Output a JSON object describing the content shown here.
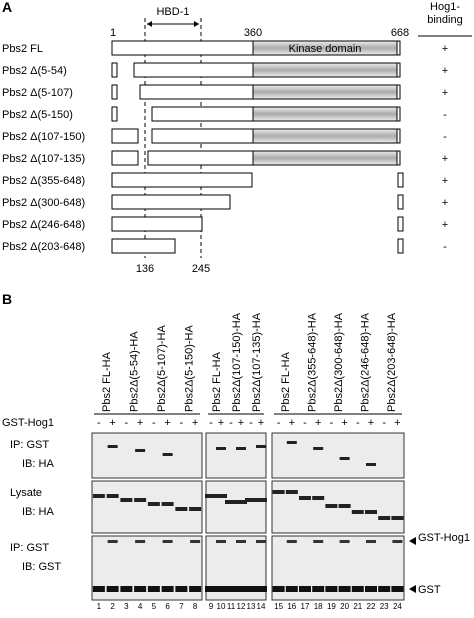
{
  "panel_a": {
    "letter": "A",
    "hbd_label": "HBD-1",
    "scale": {
      "start": "1",
      "kinase_start": "360",
      "end": "668",
      "hbd_start": "136",
      "hbd_end": "245"
    },
    "kinase_label": "Kinase domain",
    "binding_header": "Hog1-binding",
    "constructs": [
      {
        "label": "Pbs2 FL",
        "binding": "+"
      },
      {
        "label": "Pbs2 Δ(5-54)",
        "binding": "+"
      },
      {
        "label": "Pbs2 Δ(5-107)",
        "binding": "+"
      },
      {
        "label": "Pbs2 Δ(5-150)",
        "binding": "-"
      },
      {
        "label": "Pbs2 Δ(107-150)",
        "binding": "-"
      },
      {
        "label": "Pbs2 Δ(107-135)",
        "binding": "+"
      },
      {
        "label": "Pbs2 Δ(355-648)",
        "binding": "+"
      },
      {
        "label": "Pbs2 Δ(300-648)",
        "binding": "+"
      },
      {
        "label": "Pbs2 Δ(246-648)",
        "binding": "+"
      },
      {
        "label": "Pbs2 Δ(203-648)",
        "binding": "-"
      }
    ]
  },
  "panel_b": {
    "letter": "B",
    "lane_labels": [
      "Pbs2 FL-HA",
      "Pbs2Δ(5-54)-HA",
      "Pbs2Δ(5-107)-HA",
      "Pbs2Δ(5-150)-HA",
      "Pbs2 FL-HA",
      "Pbs2Δ(107-150)-HA",
      "Pbs2Δ(107-135)-HA",
      "Pbs2 FL-HA",
      "Pbs2Δ(355-648)-HA",
      "Pbs2Δ(300-648)-HA",
      "Pbs2Δ(246-648)-HA",
      "Pbs2Δ(203-648)-HA"
    ],
    "treatment_label": "GST-Hog1",
    "signs": [
      "-",
      "+",
      "-",
      "+",
      "-",
      "+",
      "-",
      "+",
      "-",
      "+",
      "-",
      "+",
      "-",
      "+",
      "-",
      "+",
      "-",
      "+",
      "-",
      "+",
      "-",
      "+",
      "-",
      "+"
    ],
    "row_labels": [
      [
        "IP: GST",
        "IB: HA"
      ],
      [
        "Lysate",
        "IB: HA"
      ],
      [
        "IP: GST",
        "IB: GST"
      ]
    ],
    "right_labels": [
      "GST-Hog1",
      "GST"
    ],
    "lane_numbers": [
      1,
      2,
      3,
      4,
      5,
      6,
      7,
      8,
      9,
      10,
      11,
      12,
      13,
      14,
      15,
      16,
      17,
      18,
      19,
      20,
      21,
      22,
      23,
      24
    ]
  }
}
